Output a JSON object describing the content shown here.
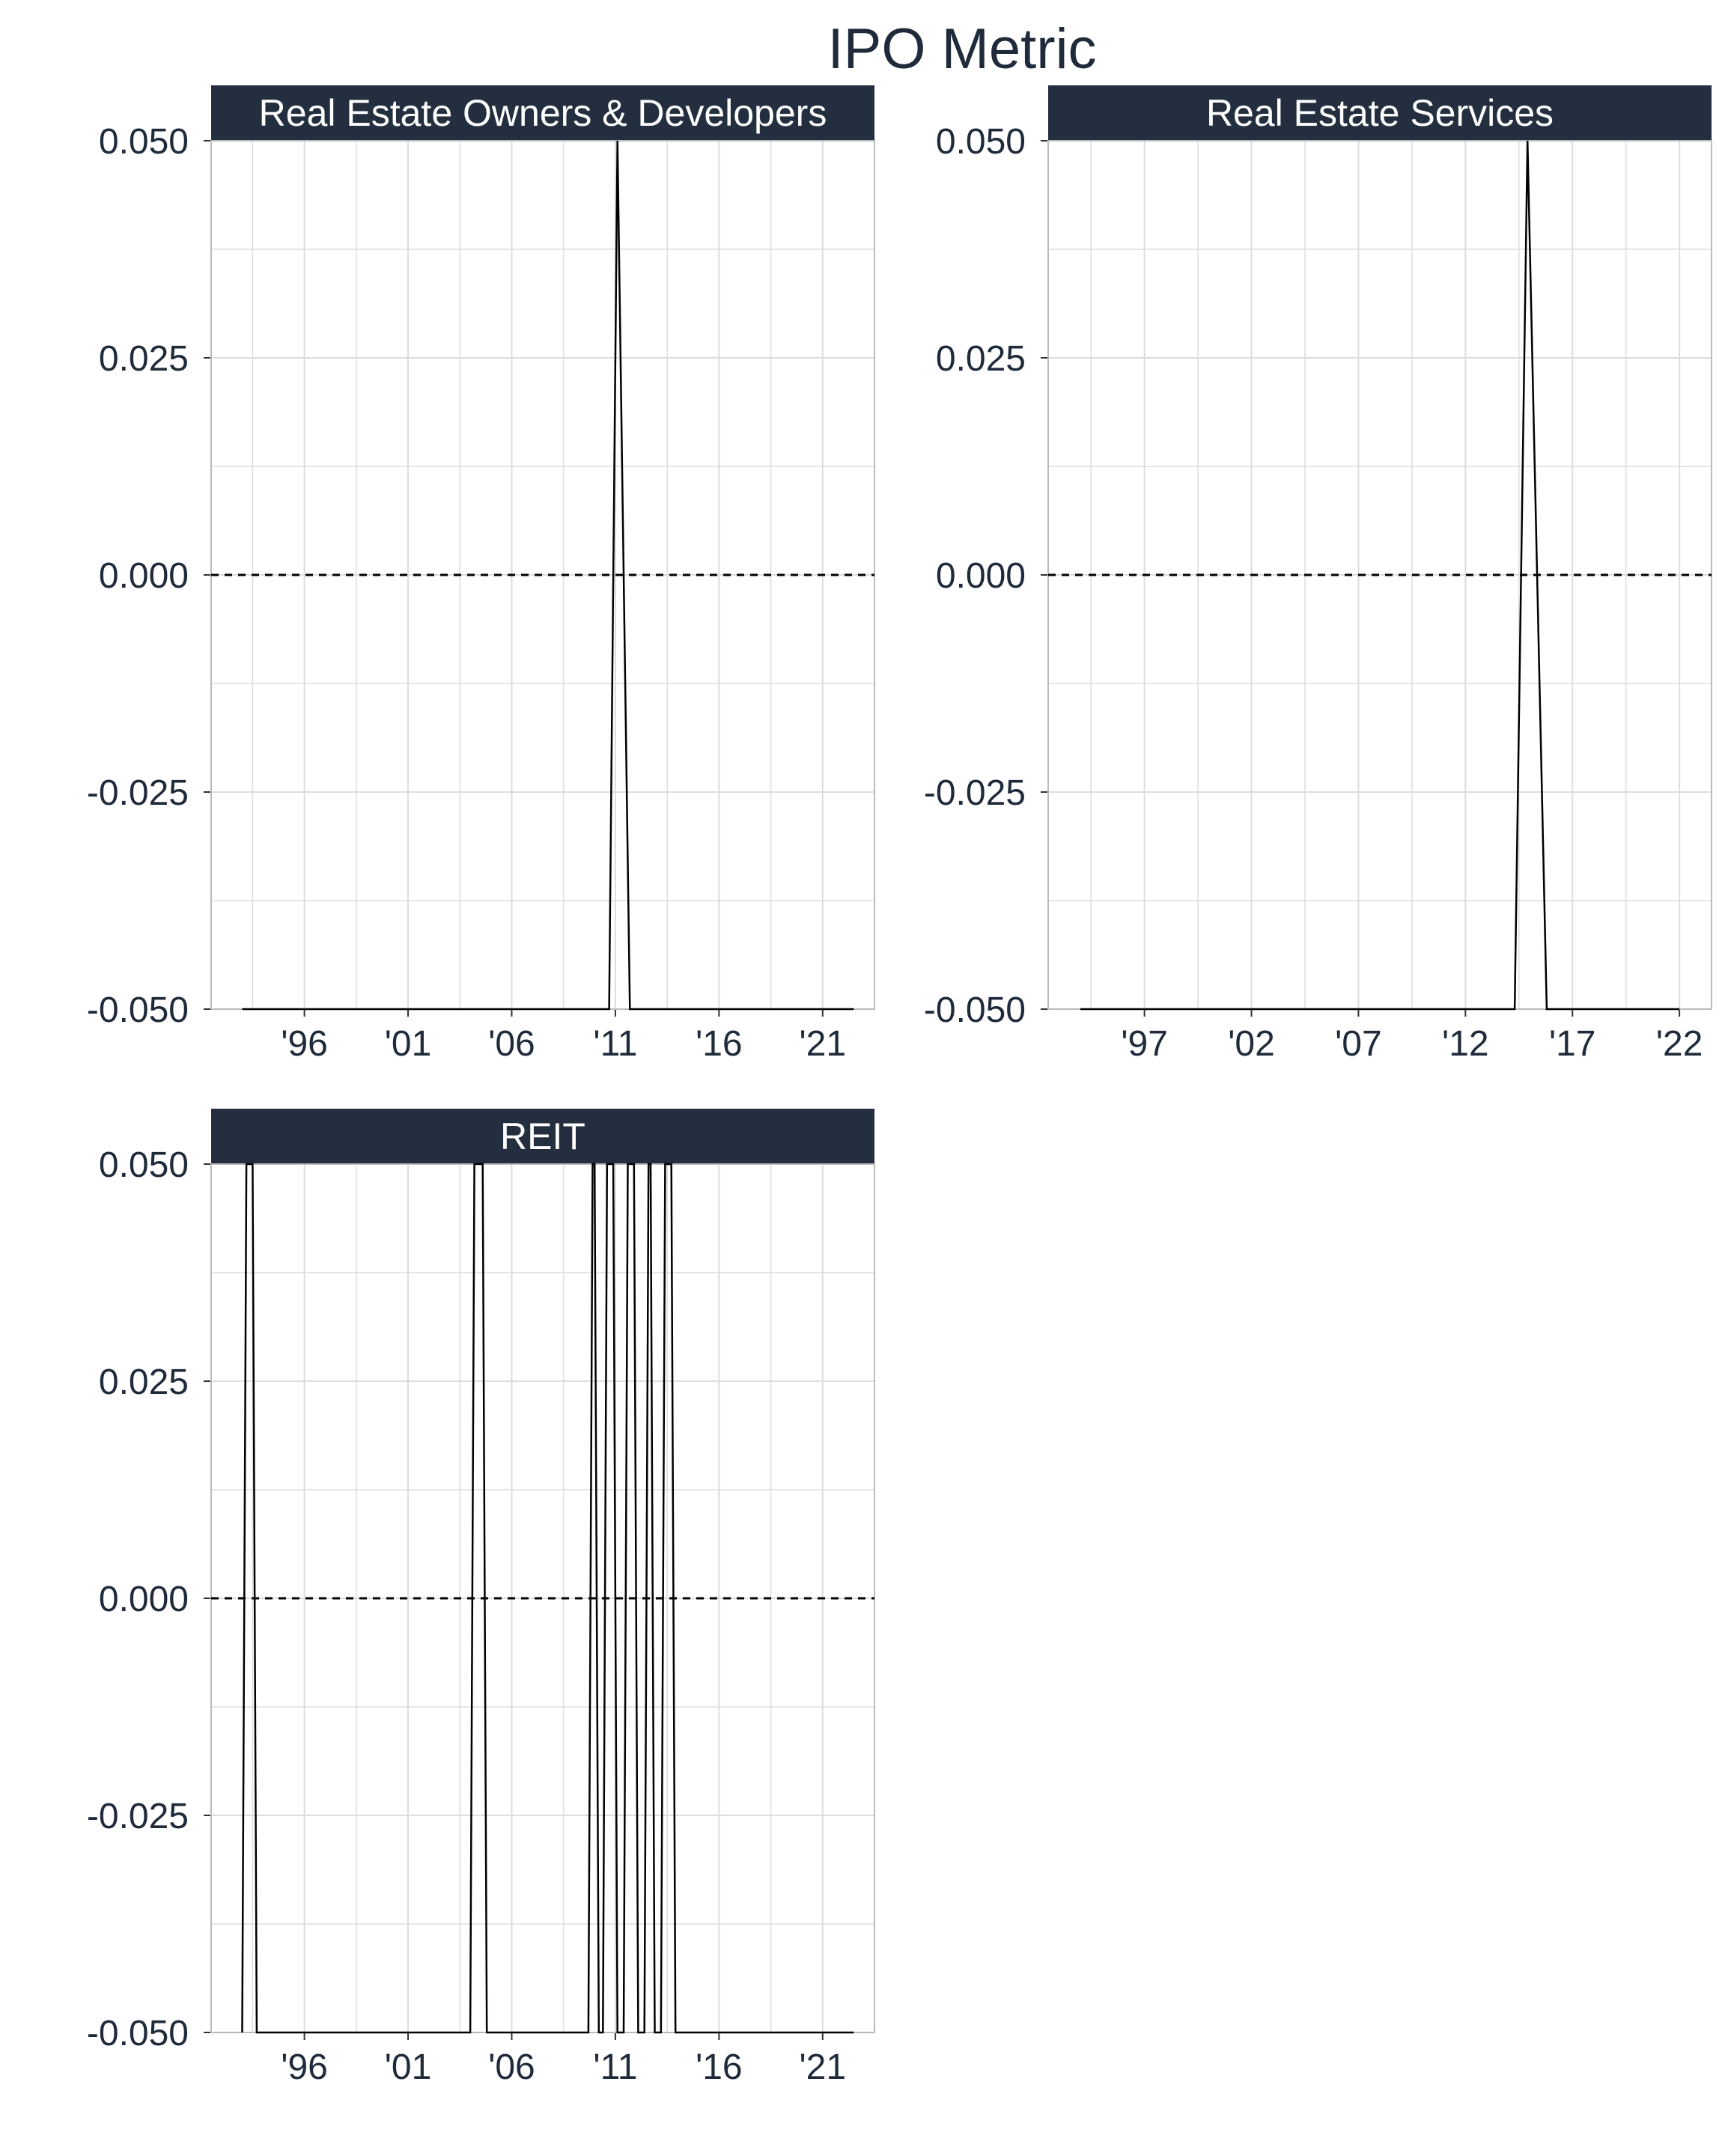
{
  "title": "IPO Metric",
  "colors": {
    "strip": "#232f3e",
    "line": "#000000",
    "grid": "#dddddd",
    "text": "#1f2a3a"
  },
  "chart_data": [
    {
      "type": "line",
      "panel": "Real Estate Owners & Developers",
      "xlim": [
        1991.5,
        2023.5
      ],
      "ylim": [
        -0.05,
        0.05
      ],
      "x_ticks": [
        1996,
        2001,
        2006,
        2011,
        2016,
        2021
      ],
      "x_tick_labels": [
        "'96",
        "'01",
        "'06",
        "'11",
        "'16",
        "'21"
      ],
      "y_ticks": [
        -0.05,
        -0.025,
        0,
        0.025,
        0.05
      ],
      "y_tick_labels": [
        "-0.050",
        "-0.025",
        "0.000",
        "0.025",
        "0.050"
      ],
      "reference_line_y": 0,
      "series": [
        {
          "x": [
            1993,
            2010.7,
            2011.1,
            2011.7,
            2022.5
          ],
          "y": [
            -0.05,
            -0.05,
            0.05,
            -0.05,
            -0.05
          ]
        }
      ]
    },
    {
      "type": "line",
      "panel": "Real Estate Services",
      "xlim": [
        1992.5,
        2023.5
      ],
      "ylim": [
        -0.05,
        0.05
      ],
      "x_ticks": [
        1997,
        2002,
        2007,
        2012,
        2017,
        2022
      ],
      "x_tick_labels": [
        "'97",
        "'02",
        "'07",
        "'12",
        "'17",
        "'22"
      ],
      "y_ticks": [
        -0.05,
        -0.025,
        0,
        0.025,
        0.05
      ],
      "y_tick_labels": [
        "-0.050",
        "-0.025",
        "0.000",
        "0.025",
        "0.050"
      ],
      "reference_line_y": 0,
      "series": [
        {
          "x": [
            1994,
            2014.3,
            2014.9,
            2015.8,
            2022
          ],
          "y": [
            -0.05,
            -0.05,
            0.05,
            -0.05,
            -0.05
          ]
        }
      ]
    },
    {
      "type": "line",
      "panel": "REIT",
      "xlim": [
        1991.5,
        2023.5
      ],
      "ylim": [
        -0.05,
        0.05
      ],
      "x_ticks": [
        1996,
        2001,
        2006,
        2011,
        2016,
        2021
      ],
      "x_tick_labels": [
        "'96",
        "'01",
        "'06",
        "'11",
        "'16",
        "'21"
      ],
      "y_ticks": [
        -0.05,
        -0.025,
        0,
        0.025,
        0.05
      ],
      "y_tick_labels": [
        "-0.050",
        "-0.025",
        "0.000",
        "0.025",
        "0.050"
      ],
      "reference_line_y": 0,
      "series": [
        {
          "x": [
            1993,
            1993.2,
            1993.5,
            1993.7,
            2004.0,
            2004.2,
            2004.6,
            2004.8,
            2009.7,
            2009.9,
            2010.0,
            2010.2,
            2010.4,
            2010.6,
            2010.9,
            2011.1,
            2011.4,
            2011.6,
            2011.9,
            2012.1,
            2012.4,
            2012.6,
            2012.7,
            2012.9,
            2013.2,
            2013.4,
            2013.7,
            2013.9,
            2022.5
          ],
          "y": [
            -0.05,
            0.05,
            0.05,
            -0.05,
            -0.05,
            0.05,
            0.05,
            -0.05,
            -0.05,
            0.05,
            0.05,
            -0.05,
            -0.05,
            0.05,
            0.05,
            -0.05,
            -0.05,
            0.05,
            0.05,
            -0.05,
            -0.05,
            0.05,
            0.05,
            -0.05,
            -0.05,
            0.05,
            0.05,
            -0.05,
            -0.05
          ]
        }
      ]
    }
  ]
}
